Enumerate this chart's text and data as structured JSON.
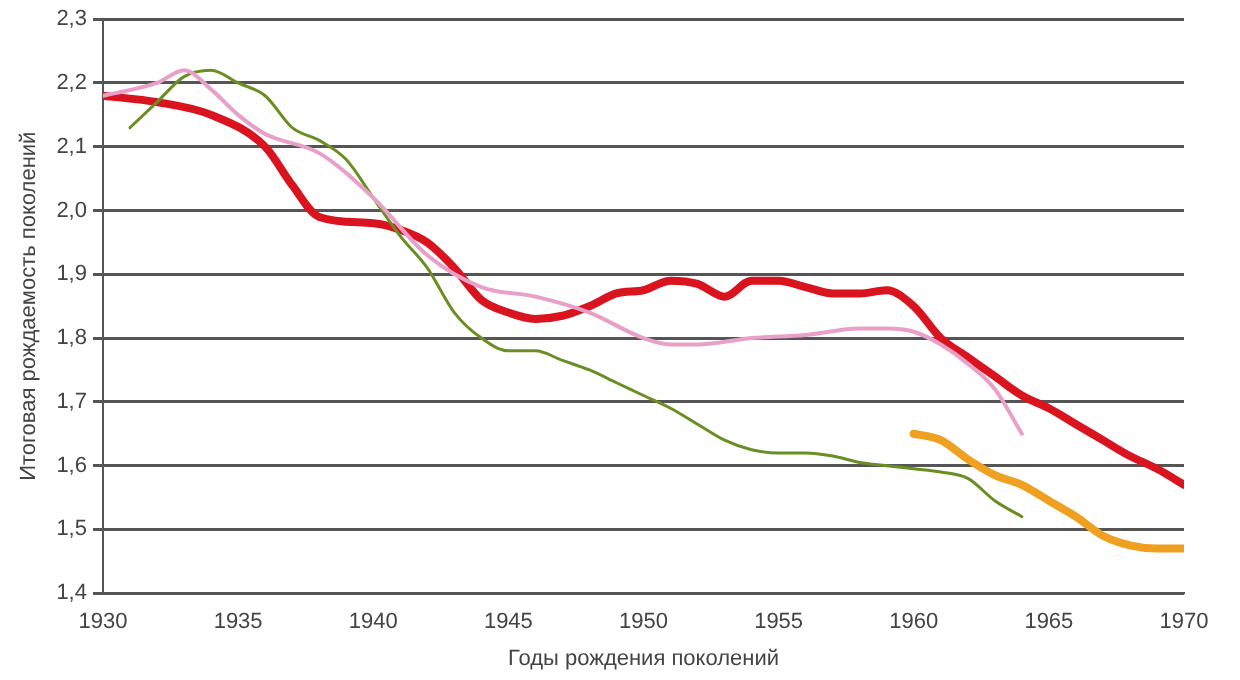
{
  "chart_data": {
    "type": "line",
    "xlabel": "Годы рождения поколений",
    "ylabel": "Итоговая рождаемость поколений",
    "xlim": [
      1930,
      1970
    ],
    "xticks": [
      1930,
      1935,
      1940,
      1945,
      1950,
      1955,
      1960,
      1965,
      1970
    ],
    "ylim": [
      1.4,
      2.3
    ],
    "yticks": [
      {
        "value": 1.4,
        "label": "1,4"
      },
      {
        "value": 1.5,
        "label": "1,5"
      },
      {
        "value": 1.6,
        "label": "1,6"
      },
      {
        "value": 1.7,
        "label": "1,7"
      },
      {
        "value": 1.8,
        "label": "1,8"
      },
      {
        "value": 1.9,
        "label": "1,9"
      },
      {
        "value": 2.0,
        "label": "2,0"
      },
      {
        "value": 2.1,
        "label": "2,1"
      },
      {
        "value": 2.2,
        "label": "2,2"
      },
      {
        "value": 2.3,
        "label": "2,3"
      }
    ],
    "grid": "y",
    "legend": false,
    "marker": "none",
    "line_style": "solid",
    "series": [
      {
        "color": "#e8a0c8",
        "x": [
          1930,
          1932,
          1933,
          1934,
          1935,
          1936,
          1938,
          1940,
          1942,
          1944,
          1946,
          1948,
          1950,
          1951,
          1952,
          1954,
          1956,
          1958,
          1959,
          1960,
          1961,
          1962,
          1963,
          1964
        ],
        "values": [
          2.18,
          2.2,
          2.22,
          2.19,
          2.15,
          2.12,
          2.09,
          2.02,
          1.93,
          1.88,
          1.865,
          1.84,
          1.8,
          1.79,
          1.79,
          1.8,
          1.805,
          1.815,
          1.815,
          1.81,
          1.79,
          1.76,
          1.72,
          1.65
        ]
      },
      {
        "color": "#6b8e23",
        "x": [
          1931,
          1932,
          1933,
          1934,
          1935,
          1936,
          1937,
          1938,
          1939,
          1940,
          1941,
          1942,
          1943,
          1944,
          1945,
          1946,
          1947,
          1948,
          1949,
          1950,
          1951,
          1952,
          1953,
          1954,
          1955,
          1956,
          1957,
          1958,
          1959,
          1960,
          1961,
          1962,
          1963,
          1964
        ],
        "values": [
          2.13,
          2.17,
          2.21,
          2.22,
          2.2,
          2.18,
          2.13,
          2.11,
          2.08,
          2.02,
          1.96,
          1.91,
          1.84,
          1.8,
          1.78,
          1.78,
          1.765,
          1.75,
          1.73,
          1.71,
          1.69,
          1.665,
          1.64,
          1.625,
          1.62,
          1.62,
          1.615,
          1.605,
          1.6,
          1.595,
          1.59,
          1.58,
          1.545,
          1.52
        ]
      },
      {
        "color": "#f0a020",
        "x": [
          1960,
          1961,
          1962,
          1963,
          1964,
          1965,
          1966,
          1967,
          1968,
          1969,
          1970
        ],
        "values": [
          1.65,
          1.64,
          1.61,
          1.585,
          1.57,
          1.545,
          1.52,
          1.49,
          1.475,
          1.47,
          1.47
        ]
      },
      {
        "color": "#d9141e",
        "x": [
          1930,
          1932,
          1934,
          1936,
          1937,
          1938,
          1940,
          1941,
          1942,
          1943,
          1944,
          1945,
          1946,
          1947,
          1948,
          1949,
          1950,
          1951,
          1952,
          1953,
          1954,
          1955,
          1956,
          1957,
          1958,
          1959,
          1960,
          1961,
          1962,
          1963,
          1964,
          1965,
          1966,
          1967,
          1968,
          1969,
          1970
        ],
        "values": [
          2.18,
          2.17,
          2.15,
          2.1,
          2.04,
          1.99,
          1.98,
          1.97,
          1.95,
          1.91,
          1.86,
          1.84,
          1.83,
          1.835,
          1.85,
          1.87,
          1.875,
          1.89,
          1.885,
          1.865,
          1.89,
          1.89,
          1.88,
          1.87,
          1.87,
          1.875,
          1.85,
          1.8,
          1.77,
          1.74,
          1.71,
          1.69,
          1.665,
          1.64,
          1.615,
          1.595,
          1.57
        ]
      }
    ]
  }
}
